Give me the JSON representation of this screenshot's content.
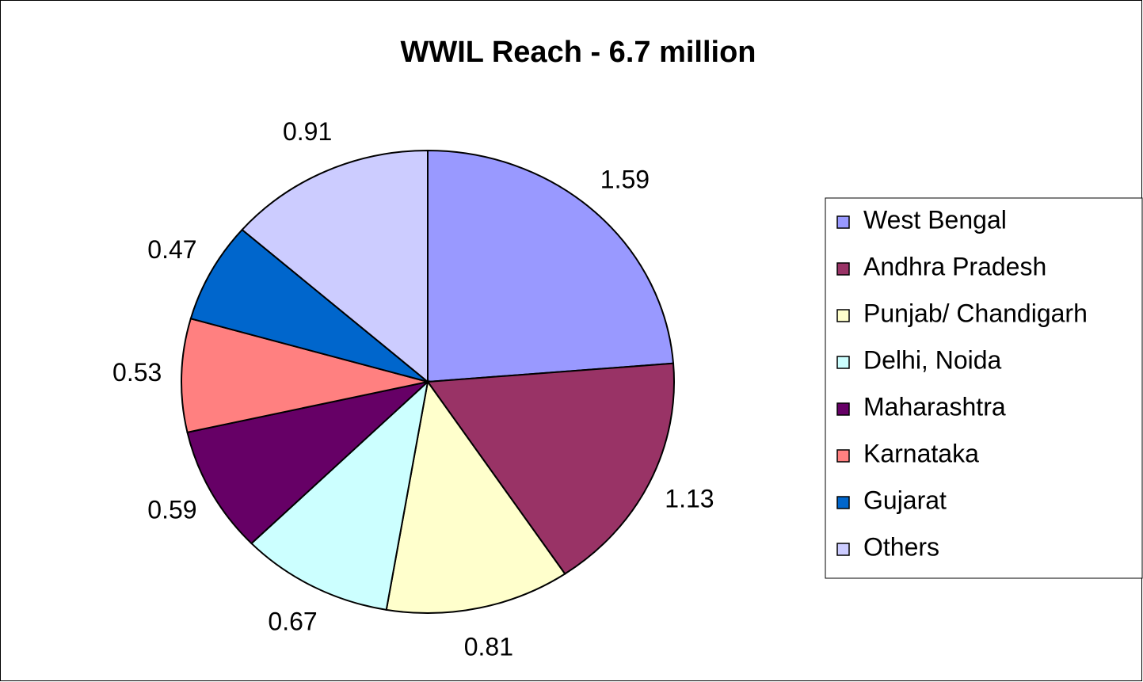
{
  "chart_data": {
    "type": "pie",
    "title": "WWIL Reach - 6.7 million",
    "categories": [
      "West Bengal",
      "Andhra Pradesh",
      "Punjab/ Chandigarh",
      "Delhi, Noida",
      "Maharashtra",
      "Karnataka",
      "Gujarat",
      "Others"
    ],
    "values": [
      1.59,
      1.13,
      0.81,
      0.67,
      0.59,
      0.53,
      0.47,
      0.91
    ],
    "colors": [
      "#9999ff",
      "#993366",
      "#ffffcc",
      "#ccffff",
      "#660066",
      "#ff8080",
      "#0066cc",
      "#ccccff"
    ],
    "legend": "right"
  }
}
